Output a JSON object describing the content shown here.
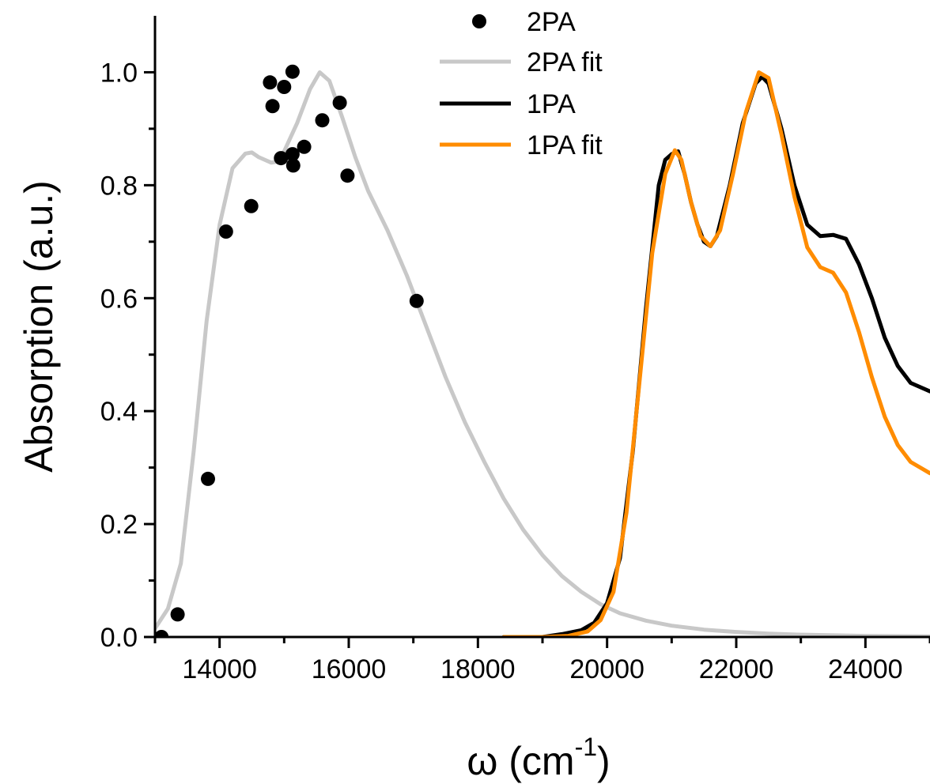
{
  "chart_data": {
    "type": "line",
    "title": "",
    "xlabel": "ω (cm-1)",
    "xlabel_parts": {
      "main": "ω (cm",
      "sup": "-1",
      "close": ")"
    },
    "ylabel": "Absorption (a.u.)",
    "xlim": [
      13000,
      25000
    ],
    "ylim": [
      0,
      1.1
    ],
    "x_ticks": [
      14000,
      16000,
      18000,
      20000,
      22000,
      24000
    ],
    "x_tick_labels": [
      "14000",
      "16000",
      "18000",
      "20000",
      "22000",
      "24000"
    ],
    "y_ticks": [
      0,
      0.2,
      0.4,
      0.6,
      0.8,
      1.0
    ],
    "y_tick_labels": [
      "0.0",
      "0.2",
      "0.4",
      "0.6",
      "0.8",
      "1.0"
    ],
    "grid": false,
    "legend_position": "top-center",
    "series": [
      {
        "name": "2PA",
        "kind": "scatter",
        "color": "#000000",
        "points": [
          [
            13100,
            0.0
          ],
          [
            13350,
            0.04
          ],
          [
            13820,
            0.28
          ],
          [
            14100,
            0.718
          ],
          [
            14490,
            0.763
          ],
          [
            14780,
            0.982
          ],
          [
            14820,
            0.94
          ],
          [
            14950,
            0.848
          ],
          [
            15000,
            0.974
          ],
          [
            15130,
            1.001
          ],
          [
            15130,
            0.855
          ],
          [
            15140,
            0.835
          ],
          [
            15310,
            0.868
          ],
          [
            15590,
            0.915
          ],
          [
            15860,
            0.946
          ],
          [
            15980,
            0.817
          ],
          [
            17050,
            0.595
          ]
        ]
      },
      {
        "name": "2PA fit",
        "kind": "line",
        "color": "#c8c8c8",
        "points": [
          [
            13000,
            0.015
          ],
          [
            13200,
            0.05
          ],
          [
            13400,
            0.13
          ],
          [
            13600,
            0.33
          ],
          [
            13800,
            0.56
          ],
          [
            14000,
            0.73
          ],
          [
            14200,
            0.83
          ],
          [
            14400,
            0.856
          ],
          [
            14500,
            0.858
          ],
          [
            14600,
            0.85
          ],
          [
            14800,
            0.84
          ],
          [
            14900,
            0.842
          ],
          [
            15000,
            0.86
          ],
          [
            15200,
            0.91
          ],
          [
            15400,
            0.97
          ],
          [
            15550,
            1.0
          ],
          [
            15700,
            0.985
          ],
          [
            15900,
            0.92
          ],
          [
            16100,
            0.85
          ],
          [
            16300,
            0.79
          ],
          [
            16600,
            0.72
          ],
          [
            16900,
            0.64
          ],
          [
            17200,
            0.55
          ],
          [
            17500,
            0.46
          ],
          [
            17800,
            0.38
          ],
          [
            18100,
            0.31
          ],
          [
            18400,
            0.245
          ],
          [
            18700,
            0.19
          ],
          [
            19000,
            0.145
          ],
          [
            19300,
            0.108
          ],
          [
            19600,
            0.08
          ],
          [
            19900,
            0.058
          ],
          [
            20200,
            0.042
          ],
          [
            20600,
            0.029
          ],
          [
            21000,
            0.02
          ],
          [
            21500,
            0.013
          ],
          [
            22000,
            0.009
          ],
          [
            22500,
            0.006
          ],
          [
            23000,
            0.004
          ],
          [
            24000,
            0.002
          ],
          [
            25000,
            0.001
          ]
        ]
      },
      {
        "name": "1PA",
        "kind": "line",
        "color": "#000000",
        "points": [
          [
            18400,
            0.0
          ],
          [
            19000,
            0.0
          ],
          [
            19300,
            0.005
          ],
          [
            19600,
            0.012
          ],
          [
            19800,
            0.025
          ],
          [
            20000,
            0.06
          ],
          [
            20200,
            0.14
          ],
          [
            20400,
            0.33
          ],
          [
            20600,
            0.58
          ],
          [
            20800,
            0.8
          ],
          [
            20900,
            0.845
          ],
          [
            21000,
            0.855
          ],
          [
            21100,
            0.86
          ],
          [
            21200,
            0.82
          ],
          [
            21300,
            0.77
          ],
          [
            21400,
            0.73
          ],
          [
            21500,
            0.7
          ],
          [
            21600,
            0.692
          ],
          [
            21700,
            0.71
          ],
          [
            21900,
            0.8
          ],
          [
            22100,
            0.91
          ],
          [
            22300,
            0.98
          ],
          [
            22400,
            0.992
          ],
          [
            22500,
            0.98
          ],
          [
            22700,
            0.9
          ],
          [
            22900,
            0.8
          ],
          [
            23100,
            0.73
          ],
          [
            23300,
            0.71
          ],
          [
            23500,
            0.712
          ],
          [
            23700,
            0.705
          ],
          [
            23900,
            0.66
          ],
          [
            24100,
            0.6
          ],
          [
            24300,
            0.53
          ],
          [
            24500,
            0.48
          ],
          [
            24700,
            0.45
          ],
          [
            25000,
            0.435
          ]
        ]
      },
      {
        "name": "1PA fit",
        "kind": "line",
        "color": "#ff8c00",
        "points": [
          [
            18400,
            0.0
          ],
          [
            19000,
            0.0
          ],
          [
            19400,
            0.002
          ],
          [
            19700,
            0.01
          ],
          [
            19900,
            0.03
          ],
          [
            20100,
            0.08
          ],
          [
            20300,
            0.22
          ],
          [
            20500,
            0.45
          ],
          [
            20700,
            0.68
          ],
          [
            20900,
            0.82
          ],
          [
            21050,
            0.862
          ],
          [
            21150,
            0.845
          ],
          [
            21300,
            0.77
          ],
          [
            21450,
            0.71
          ],
          [
            21600,
            0.692
          ],
          [
            21750,
            0.72
          ],
          [
            21950,
            0.82
          ],
          [
            22150,
            0.93
          ],
          [
            22350,
            1.0
          ],
          [
            22500,
            0.99
          ],
          [
            22700,
            0.89
          ],
          [
            22900,
            0.78
          ],
          [
            23100,
            0.69
          ],
          [
            23300,
            0.655
          ],
          [
            23500,
            0.645
          ],
          [
            23700,
            0.61
          ],
          [
            23900,
            0.54
          ],
          [
            24100,
            0.46
          ],
          [
            24300,
            0.39
          ],
          [
            24500,
            0.34
          ],
          [
            24700,
            0.31
          ],
          [
            25000,
            0.29
          ]
        ]
      }
    ]
  }
}
